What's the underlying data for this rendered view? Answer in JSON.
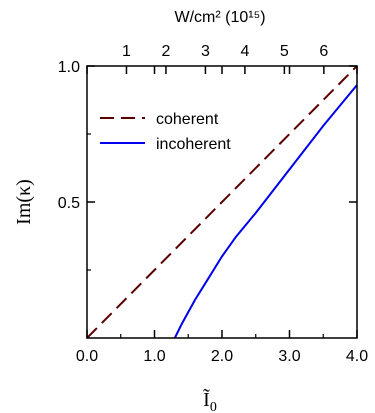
{
  "chart_data": {
    "type": "line",
    "x_axis": {
      "ticks": [
        0,
        1,
        2,
        3,
        4
      ],
      "tick_labels": [
        "0.0",
        "1.0",
        "2.0",
        "3.0",
        "4.0"
      ],
      "range": [
        0,
        4
      ]
    },
    "y_axis": {
      "label": "Im(κ)",
      "ticks": [
        0.5,
        1.0
      ],
      "tick_labels": [
        "0.5",
        "1.0"
      ],
      "range": [
        0,
        1.0
      ]
    },
    "top_axis": {
      "label": "W/cm² (10¹⁵)",
      "ticks": [
        1,
        2,
        3,
        4,
        5,
        6
      ],
      "tick_labels": [
        "1",
        "2",
        "3",
        "4",
        "5",
        "6"
      ],
      "units_per_bottom_unit": 1.71
    },
    "legend_position": "upper-left",
    "series": [
      {
        "name": "coherent",
        "color": "#5a0000",
        "style": "dashed",
        "x": [
          0.0,
          1.0,
          2.0,
          3.0,
          4.0
        ],
        "y": [
          0.0,
          0.25,
          0.5,
          0.75,
          1.0
        ]
      },
      {
        "name": "incoherent",
        "color": "#0000ee",
        "style": "solid",
        "x": [
          1.3,
          1.4,
          1.6,
          1.8,
          2.0,
          2.2,
          2.5,
          3.0,
          3.5,
          4.0
        ],
        "y": [
          0.0,
          0.05,
          0.14,
          0.22,
          0.3,
          0.37,
          0.46,
          0.62,
          0.78,
          0.93
        ]
      }
    ]
  }
}
